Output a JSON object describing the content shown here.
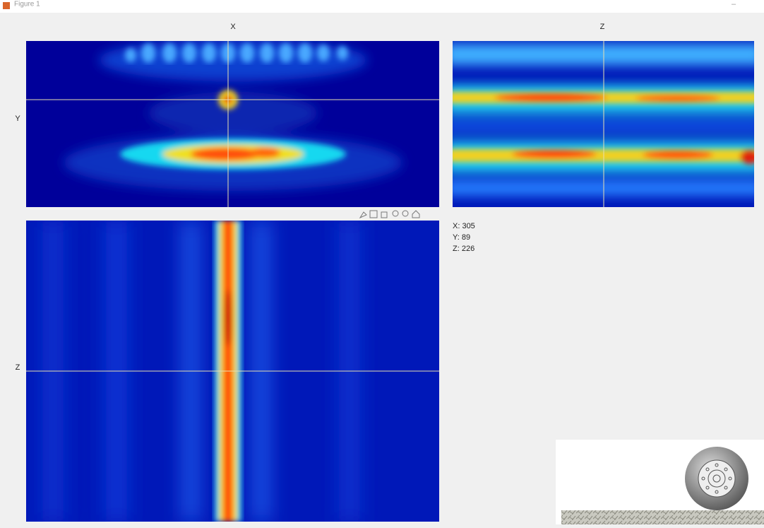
{
  "window": {
    "title": "Figure 1"
  },
  "panels": [
    {
      "x_label": "X",
      "y_label": "Y"
    },
    {
      "x_label": "Z"
    },
    {
      "y_label": "Z"
    }
  ],
  "readout": [
    "X: 305",
    "Y: 89",
    "Z: 226"
  ]
}
